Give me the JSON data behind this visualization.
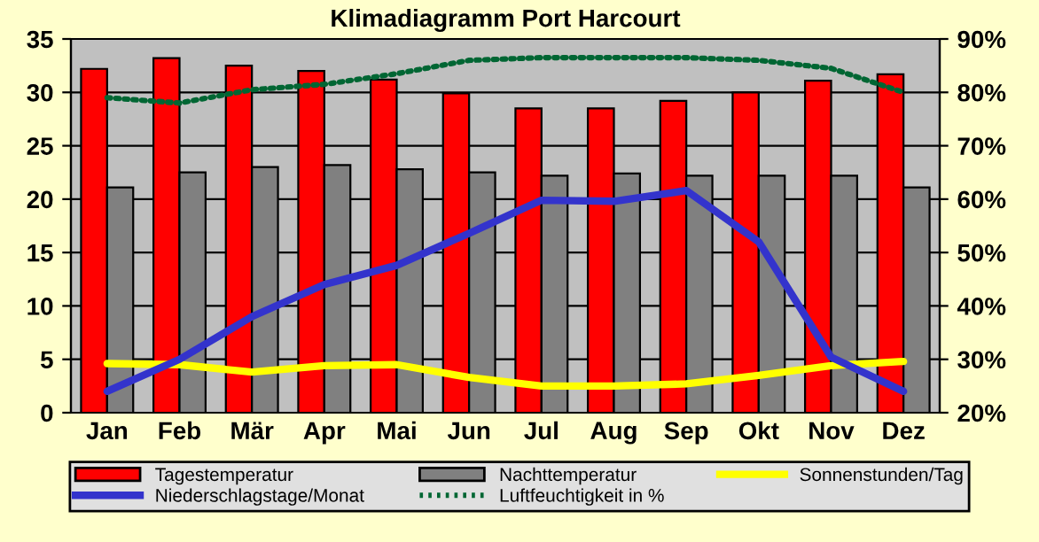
{
  "chart_data": {
    "type": "bar",
    "title": "Klimadiagramm Port Harcourt",
    "categories": [
      "Jan",
      "Feb",
      "Mär",
      "Apr",
      "Mai",
      "Jun",
      "Jul",
      "Aug",
      "Sep",
      "Okt",
      "Nov",
      "Dez"
    ],
    "series": [
      {
        "name": "Tagestemperatur",
        "color": "#ff0000",
        "values": [
          32.2,
          33.2,
          32.5,
          32.0,
          31.2,
          29.9,
          28.5,
          28.5,
          29.2,
          30.0,
          31.1,
          31.7
        ]
      },
      {
        "name": "Nachttemperatur",
        "color": "#808080",
        "values": [
          21.1,
          22.5,
          23.0,
          23.2,
          22.8,
          22.5,
          22.2,
          22.4,
          22.2,
          22.2,
          22.2,
          21.1
        ]
      },
      {
        "name": "Sonnenstunden/Tag",
        "type": "line",
        "color": "#ffff00",
        "values": [
          4.6,
          4.5,
          3.8,
          4.4,
          4.5,
          3.3,
          2.5,
          2.5,
          2.7,
          3.5,
          4.4,
          4.8
        ]
      },
      {
        "name": "Niederschlagstage/Monat",
        "type": "line",
        "color": "#3333cc",
        "values": [
          2.0,
          5.0,
          9.0,
          12.0,
          13.8,
          16.8,
          19.9,
          19.8,
          20.8,
          16.0,
          5.2,
          2.0
        ]
      },
      {
        "name": "Luftfeuchtigkeit in %",
        "type": "line",
        "axis": "y2",
        "color": "#006633",
        "line_style": "dotted",
        "values": [
          79,
          78,
          80.5,
          81.5,
          83.5,
          86,
          86.5,
          86.5,
          86.5,
          86,
          84.5,
          80
        ]
      }
    ],
    "ylim": [
      0,
      35
    ],
    "yticks": [
      0,
      5,
      10,
      15,
      20,
      25,
      30,
      35
    ],
    "y2lim": [
      20,
      90
    ],
    "y2ticks": [
      {
        "value": 20,
        "label": "20%"
      },
      {
        "value": 30,
        "label": "30%"
      },
      {
        "value": 40,
        "label": "40%"
      },
      {
        "value": 50,
        "label": "50%"
      },
      {
        "value": 60,
        "label": "60%"
      },
      {
        "value": 70,
        "label": "70%"
      },
      {
        "value": 80,
        "label": "80%"
      },
      {
        "value": 90,
        "label": "90%"
      }
    ],
    "grid": "y",
    "legend": "bottom",
    "marker": "none"
  }
}
